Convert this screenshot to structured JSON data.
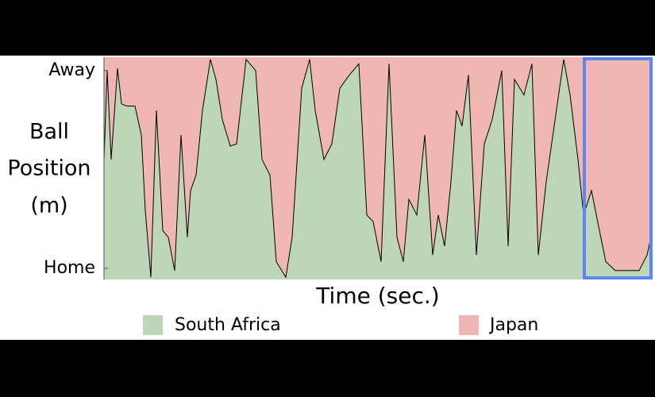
{
  "chart_data": {
    "type": "area",
    "y_label_lines": [
      "Ball",
      "Position",
      "(m)"
    ],
    "x_label": "Time (sec.)",
    "x": [
      0,
      4,
      9,
      17,
      22,
      29,
      39,
      47,
      52,
      59,
      66,
      74,
      81,
      89,
      97,
      105,
      109,
      116,
      124,
      134,
      141,
      149,
      159,
      167,
      179,
      191,
      199,
      209,
      217,
      229,
      237,
      249,
      259,
      266,
      277,
      287,
      297,
      309,
      321,
      331,
      339,
      349,
      359,
      369,
      377,
      384,
      394,
      404,
      414,
      421,
      429,
      437,
      444,
      451,
      459,
      469,
      479,
      489,
      501,
      509,
      517,
      529,
      539,
      547,
      557,
      567,
      579,
      587,
      597,
      604,
      614,
      624,
      632,
      644,
      674,
      684,
      689
    ],
    "series": [
      {
        "name": "South Africa",
        "color": "#bdd6b5",
        "values": [
          54,
          94,
          54,
          95,
          79,
          78,
          78,
          65,
          31,
          1,
          76,
          22,
          19,
          4,
          65,
          19,
          40,
          47,
          76,
          99,
          90,
          72,
          60,
          61,
          99,
          94,
          54,
          47,
          8,
          1,
          19,
          86,
          99,
          76,
          54,
          61,
          86,
          92,
          97,
          29,
          26,
          8,
          97,
          19,
          8,
          36,
          29,
          65,
          11,
          29,
          15,
          44,
          76,
          69,
          92,
          11,
          61,
          72,
          94,
          15,
          90,
          83,
          97,
          11,
          44,
          69,
          99,
          83,
          54,
          29,
          40,
          22,
          8,
          4,
          4,
          11,
          19
        ]
      }
    ],
    "fill_above": {
      "name": "Japan",
      "color": "#efb6b2"
    },
    "line_color": "#000000",
    "xlim": [
      0,
      689
    ],
    "ylim": [
      0,
      100
    ],
    "yticks": [
      {
        "value": 94,
        "label": "Away"
      },
      {
        "value": 5,
        "label": "Home"
      }
    ]
  }
}
